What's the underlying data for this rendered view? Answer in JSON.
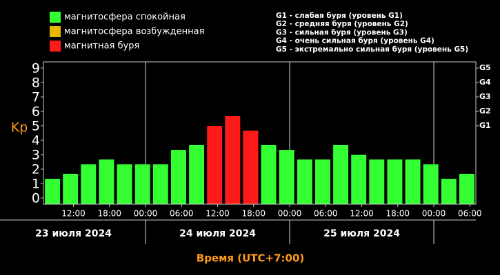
{
  "chart_data": {
    "type": "bar",
    "y_label": "Kp",
    "x_label": "Время (UTC+7:00)",
    "legend": [
      {
        "label": "магнитосфера спокойная",
        "color": "#33ff33"
      },
      {
        "label": "магнитосфера возбужденная",
        "color": "#e6b800"
      },
      {
        "label": "магнитная буря",
        "color": "#ff1a1a"
      }
    ],
    "storm_levels": [
      "G1 - слабая буря (уровень G1)",
      "G2 - средняя буря (уровень G2)",
      "G3 - сильная буря (уровень G3)",
      "G4 - очень сильная буря (уровень G4)",
      "G5 - экстремально сильная буря (уровень G5)"
    ],
    "x": [
      8.5,
      11.5,
      14.5,
      17.5,
      20.5,
      23.5,
      26.5,
      29.5,
      32.5,
      35.5,
      38.5,
      41.5,
      44.5,
      47.5,
      50.5,
      53.5,
      56.5,
      59.5,
      62.5,
      65.5,
      68.5,
      71.5,
      74.5,
      77.5
    ],
    "values": [
      1.33,
      1.67,
      2.33,
      2.67,
      2.33,
      2.33,
      2.33,
      3.33,
      3.67,
      5,
      5.67,
      4.67,
      3.67,
      3.33,
      2.67,
      2.67,
      3.67,
      3,
      2.67,
      2.67,
      2.67,
      2.33,
      1.33,
      1.67
    ],
    "colors": [
      "#33ff33",
      "#33ff33",
      "#33ff33",
      "#33ff33",
      "#33ff33",
      "#33ff33",
      "#33ff33",
      "#33ff33",
      "#33ff33",
      "#ff1a1a",
      "#ff1a1a",
      "#ff1a1a",
      "#33ff33",
      "#33ff33",
      "#33ff33",
      "#33ff33",
      "#33ff33",
      "#33ff33",
      "#33ff33",
      "#33ff33",
      "#33ff33",
      "#33ff33",
      "#33ff33",
      "#33ff33"
    ],
    "bar_width": 3,
    "xlim": [
      7,
      79
    ],
    "ylim": [
      -0.43,
      9.43
    ],
    "yticks": [
      0,
      1,
      2,
      3,
      4,
      5,
      6,
      7,
      8,
      9
    ],
    "y2ticks": [
      {
        "value": 5,
        "label": "G1"
      },
      {
        "value": 6,
        "label": "G2"
      },
      {
        "value": 7,
        "label": "G3"
      },
      {
        "value": 8,
        "label": "G4"
      },
      {
        "value": 9,
        "label": "G5"
      }
    ],
    "xticks": [
      {
        "value": 12,
        "label": "12:00"
      },
      {
        "value": 18,
        "label": "18:00"
      },
      {
        "value": 24,
        "label": "00:00"
      },
      {
        "value": 30,
        "label": "06:00"
      },
      {
        "value": 36,
        "label": "12:00"
      },
      {
        "value": 42,
        "label": "18:00"
      },
      {
        "value": 48,
        "label": "00:00"
      },
      {
        "value": 54,
        "label": "06:00"
      },
      {
        "value": 60,
        "label": "12:00"
      },
      {
        "value": 66,
        "label": "18:00"
      },
      {
        "value": 72,
        "label": "00:00"
      },
      {
        "value": 78,
        "label": "06:00"
      }
    ],
    "day_labels": [
      {
        "value": 12,
        "label": "23 июля 2024"
      },
      {
        "value": 36,
        "label": "24 июля 2024"
      },
      {
        "value": 60,
        "label": "25 июля 2024"
      }
    ],
    "day_lines": [
      24,
      48,
      72
    ]
  }
}
